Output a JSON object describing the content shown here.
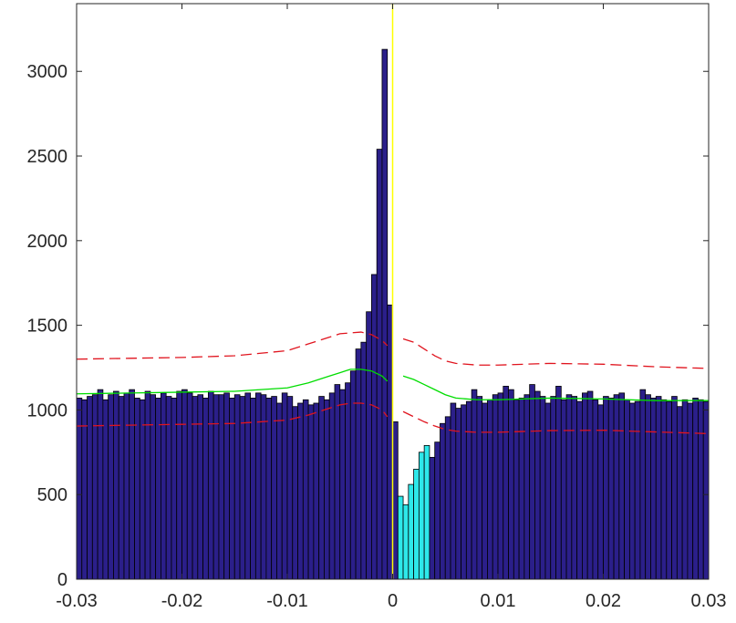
{
  "chart_data": {
    "type": "bar",
    "title": "",
    "xlabel": "",
    "ylabel": "",
    "xlim": [
      -0.03,
      0.03
    ],
    "ylim": [
      0,
      3400
    ],
    "bin_width": 0.0005,
    "x_ticks": [
      -0.03,
      -0.02,
      -0.01,
      0,
      0.01,
      0.02,
      0.03
    ],
    "x_tick_labels": [
      "-0.03",
      "-0.02",
      "-0.01",
      "0",
      "0.01",
      "0.02",
      "0.03"
    ],
    "y_ticks": [
      0,
      500,
      1000,
      1500,
      2000,
      2500,
      3000
    ],
    "y_tick_labels": [
      "0",
      "500",
      "1000",
      "1500",
      "2000",
      "2500",
      "3000"
    ],
    "grid": false,
    "box": true,
    "colors": {
      "bar_fill": "#2b1f8a",
      "highlight_fill": "#2ee8ea",
      "bar_edge": "#000000",
      "green_line": "#00dd00",
      "red_dash": "#e0141e",
      "zero_line": "#ffff00",
      "axis": "#262626"
    },
    "bins": {
      "x_start": [
        -0.03,
        -0.0295,
        -0.029,
        -0.0285,
        -0.028,
        -0.0275,
        -0.027,
        -0.0265,
        -0.026,
        -0.0255,
        -0.025,
        -0.0245,
        -0.024,
        -0.0235,
        -0.023,
        -0.0225,
        -0.022,
        -0.0215,
        -0.021,
        -0.0205,
        -0.02,
        -0.0195,
        -0.019,
        -0.0185,
        -0.018,
        -0.0175,
        -0.017,
        -0.0165,
        -0.016,
        -0.0155,
        -0.015,
        -0.0145,
        -0.014,
        -0.0135,
        -0.013,
        -0.0125,
        -0.012,
        -0.0115,
        -0.011,
        -0.0105,
        -0.01,
        -0.0095,
        -0.009,
        -0.0085,
        -0.008,
        -0.0075,
        -0.007,
        -0.0065,
        -0.006,
        -0.0055,
        -0.005,
        -0.0045,
        -0.004,
        -0.0035,
        -0.003,
        -0.0025,
        -0.002,
        -0.0015,
        -0.001,
        -0.0005,
        0,
        0.0005,
        0.001,
        0.0015,
        0.002,
        0.0025,
        0.003,
        0.0035,
        0.004,
        0.0045,
        0.005,
        0.0055,
        0.006,
        0.0065,
        0.007,
        0.0075,
        0.008,
        0.0085,
        0.009,
        0.0095,
        0.01,
        0.0105,
        0.011,
        0.0115,
        0.012,
        0.0125,
        0.013,
        0.0135,
        0.014,
        0.0145,
        0.015,
        0.0155,
        0.016,
        0.0165,
        0.017,
        0.0175,
        0.018,
        0.0185,
        0.019,
        0.0195,
        0.02,
        0.0205,
        0.021,
        0.0215,
        0.022,
        0.0225,
        0.023,
        0.0235,
        0.024,
        0.0245,
        0.025,
        0.0255,
        0.026,
        0.0265,
        0.027,
        0.0275,
        0.028,
        0.0285,
        0.029,
        0.0295
      ],
      "counts": [
        1070,
        1060,
        1080,
        1090,
        1120,
        1060,
        1090,
        1110,
        1080,
        1100,
        1120,
        1070,
        1060,
        1110,
        1090,
        1070,
        1100,
        1080,
        1070,
        1110,
        1120,
        1100,
        1080,
        1090,
        1070,
        1110,
        1090,
        1090,
        1100,
        1070,
        1090,
        1080,
        1100,
        1070,
        1100,
        1090,
        1070,
        1080,
        1040,
        1100,
        1080,
        1020,
        1040,
        1060,
        1030,
        1040,
        1080,
        1060,
        1100,
        1150,
        1120,
        1160,
        1230,
        1360,
        1400,
        1580,
        1800,
        2540,
        3130,
        1620,
        930,
        490,
        440,
        560,
        650,
        750,
        790,
        720,
        810,
        920,
        960,
        1040,
        1010,
        1030,
        1050,
        1120,
        1080,
        1040,
        1060,
        1090,
        1100,
        1140,
        1120,
        1060,
        1070,
        1090,
        1150,
        1110,
        1080,
        1040,
        1080,
        1140,
        1060,
        1090,
        1080,
        1050,
        1100,
        1110,
        1060,
        1030,
        1080,
        1070,
        1090,
        1100,
        1060,
        1040,
        1050,
        1120,
        1090,
        1070,
        1080,
        1060,
        1050,
        1080,
        1020,
        1060,
        1040,
        1070,
        1060,
        1050
      ],
      "highlight_range": [
        0.0005,
        0.0035
      ]
    },
    "series": [
      {
        "style": "solid",
        "color": "green",
        "x": [
          -0.03,
          -0.025,
          -0.02,
          -0.015,
          -0.01,
          -0.008,
          -0.006,
          -0.005,
          -0.004,
          -0.003,
          -0.002,
          -0.001,
          -0.0005,
          0.001,
          0.002,
          0.003,
          0.004,
          0.005,
          0.006,
          0.008,
          0.01,
          0.015,
          0.02,
          0.025,
          0.03
        ],
        "y": [
          1095,
          1100,
          1105,
          1110,
          1130,
          1160,
          1200,
          1220,
          1240,
          1240,
          1230,
          1200,
          1170,
          1200,
          1180,
          1150,
          1120,
          1090,
          1070,
          1060,
          1060,
          1070,
          1065,
          1055,
          1055
        ]
      },
      {
        "style": "dashed",
        "color": "red",
        "x": [
          -0.03,
          -0.025,
          -0.02,
          -0.015,
          -0.01,
          -0.008,
          -0.006,
          -0.005,
          -0.004,
          -0.003,
          -0.002,
          -0.001,
          -0.0005,
          0.001,
          0.002,
          0.003,
          0.004,
          0.005,
          0.006,
          0.008,
          0.01,
          0.015,
          0.02,
          0.025,
          0.03
        ],
        "y": [
          1300,
          1305,
          1310,
          1320,
          1350,
          1390,
          1430,
          1450,
          1455,
          1460,
          1445,
          1410,
          1380,
          1420,
          1400,
          1360,
          1320,
          1290,
          1275,
          1265,
          1265,
          1275,
          1270,
          1255,
          1245
        ]
      },
      {
        "style": "dashed",
        "color": "red",
        "x": [
          -0.03,
          -0.025,
          -0.02,
          -0.015,
          -0.01,
          -0.008,
          -0.006,
          -0.005,
          -0.004,
          -0.003,
          -0.002,
          -0.001,
          -0.0005,
          0.001,
          0.002,
          0.003,
          0.004,
          0.005,
          0.006,
          0.008,
          0.01,
          0.015,
          0.02,
          0.025,
          0.03
        ],
        "y": [
          905,
          910,
          915,
          920,
          940,
          970,
          1010,
          1030,
          1040,
          1040,
          1030,
          1000,
          960,
          990,
          960,
          930,
          905,
          885,
          875,
          868,
          868,
          878,
          880,
          870,
          860
        ]
      }
    ],
    "vertical_line_x": 0
  }
}
